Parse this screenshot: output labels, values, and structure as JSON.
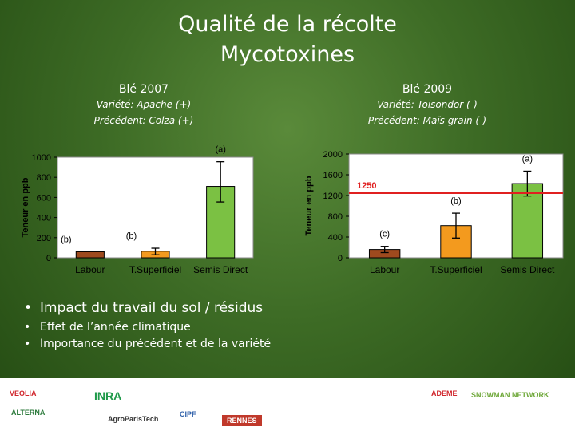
{
  "title_line1": "Qualité de la récolte",
  "title_line2": "Mycotoxines",
  "left": {
    "year": "Blé 2007",
    "variety": "Variété: Apache (+)",
    "precedent": "Précédent: Colza (+)"
  },
  "right": {
    "year": "Blé 2009",
    "variety": "Variété: Toisondor (-)",
    "precedent": "Précédent: Maïs grain (-)"
  },
  "chart_data": [
    {
      "type": "bar",
      "categories": [
        "Labour",
        "T.Superficiel",
        "Semis Direct"
      ],
      "values": [
        60,
        65,
        710
      ],
      "errors_low": [
        0,
        35,
        155
      ],
      "errors_high": [
        0,
        30,
        245
      ],
      "significance": [
        "(b)",
        "(b)",
        "(a)"
      ],
      "colors": [
        "#9e4a1e",
        "#f39a1e",
        "#7bc143"
      ],
      "ylabel": "Teneur en ppb",
      "ylim": [
        0,
        1000
      ],
      "yticks": [
        0,
        200,
        400,
        600,
        800,
        1000
      ]
    },
    {
      "type": "bar",
      "categories": [
        "Labour",
        "T.Superficiel",
        "Semis Direct"
      ],
      "values": [
        160,
        620,
        1430
      ],
      "errors_low": [
        60,
        240,
        240
      ],
      "errors_high": [
        60,
        240,
        240
      ],
      "significance": [
        "(c)",
        "(b)",
        "(a)"
      ],
      "colors": [
        "#9e4a1e",
        "#f39a1e",
        "#7bc143"
      ],
      "ylabel": "Teneur en ppb",
      "ylim": [
        0,
        2000
      ],
      "yticks": [
        0,
        400,
        800,
        1200,
        1600,
        2000
      ],
      "threshold": 1250,
      "threshold_label": "1250",
      "threshold_color": "#e02020"
    }
  ],
  "bullets": [
    "Impact du travail du sol / résidus",
    "Effet de l’année climatique",
    "Importance du précédent et de la variété"
  ],
  "logos": [
    "VEOLIA",
    "ALTERNA",
    "INRA",
    "AgroParisTech",
    "CIPF",
    "RENNES",
    "ADEME",
    "SNOWMAN NETWORK"
  ]
}
